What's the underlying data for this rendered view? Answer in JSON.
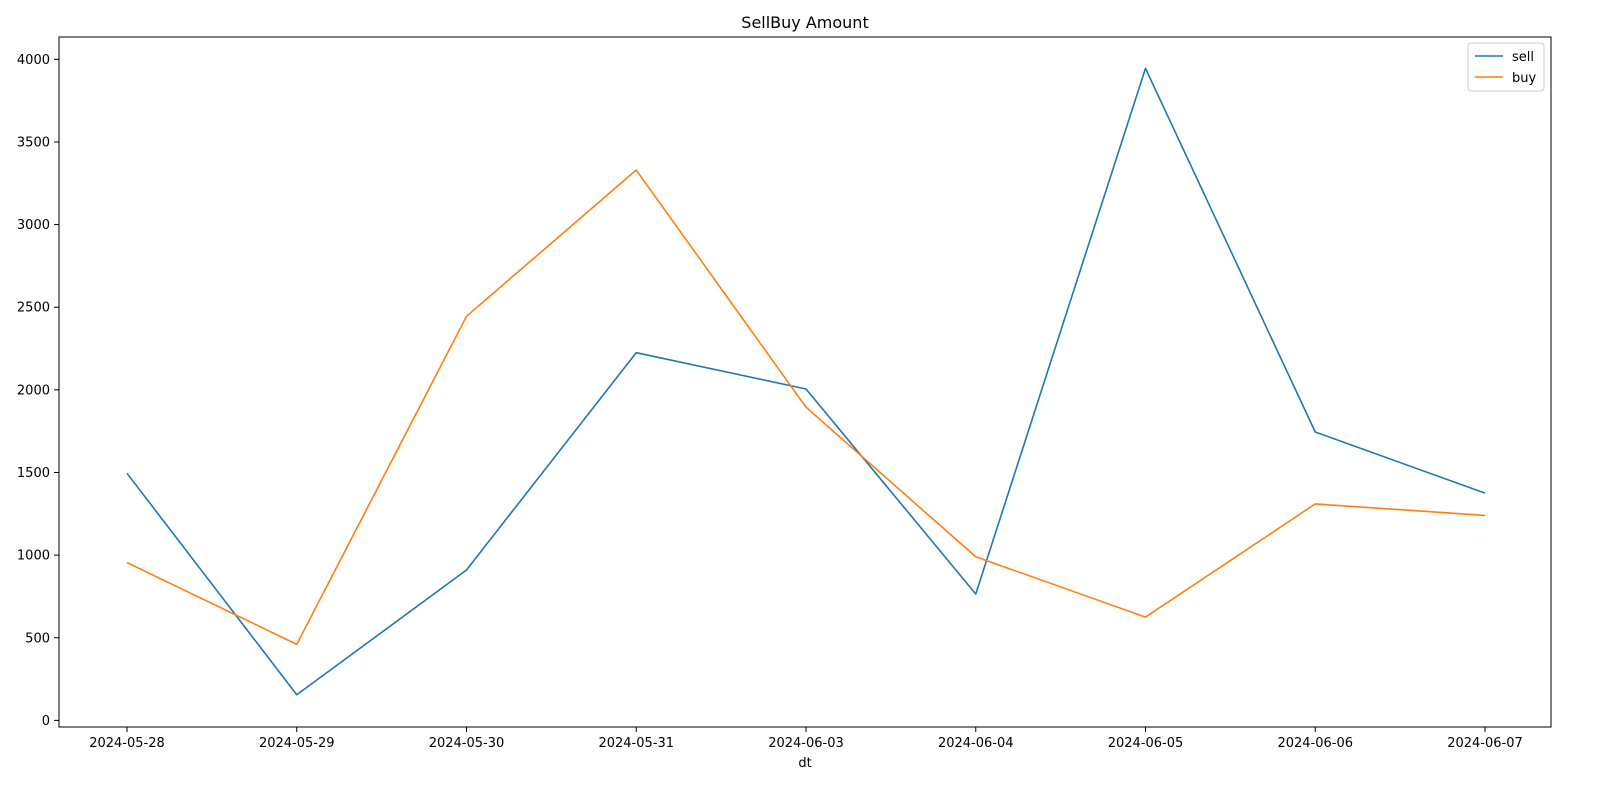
{
  "chart_data": {
    "type": "line",
    "title": "SellBuy Amount",
    "xlabel": "dt",
    "ylabel": "",
    "categories": [
      "2024-05-28",
      "2024-05-29",
      "2024-05-30",
      "2024-05-31",
      "2024-06-03",
      "2024-06-04",
      "2024-06-05",
      "2024-06-06",
      "2024-06-07"
    ],
    "ylim": [
      -40,
      4135
    ],
    "yticks": [
      0,
      500,
      1000,
      1500,
      2000,
      2500,
      3000,
      3500,
      4000
    ],
    "grid": false,
    "legend_position": "top-right",
    "series": [
      {
        "name": "sell",
        "color": "#1f77b4",
        "values": [
          1495,
          155,
          910,
          2225,
          2005,
          765,
          3945,
          1745,
          1375
        ]
      },
      {
        "name": "buy",
        "color": "#ff7f0e",
        "values": [
          955,
          460,
          2445,
          3330,
          1895,
          990,
          625,
          1310,
          1240
        ]
      }
    ]
  }
}
